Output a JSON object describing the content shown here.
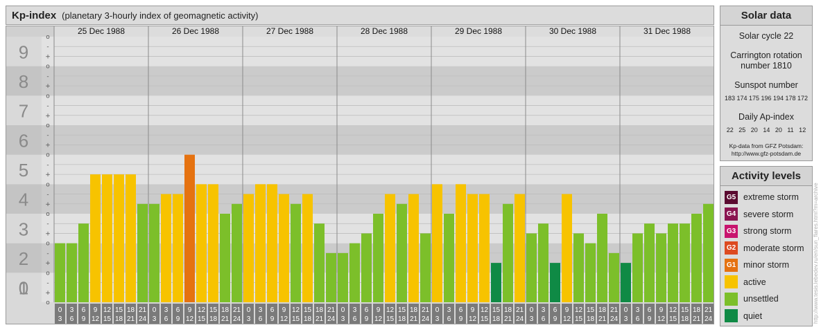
{
  "header": {
    "title": "Kp-index",
    "subtitle": "(planetary 3-hourly index of geomagnetic activity)"
  },
  "chart_data": {
    "type": "bar",
    "title": "Kp-index",
    "subtitle": "(planetary 3-hourly index of geomagnetic activity)",
    "ylim": [
      0,
      9
    ],
    "y_ticks": [
      "0",
      "1",
      "2",
      "3",
      "4",
      "5",
      "6",
      "7",
      "8",
      "9"
    ],
    "minor_tick_labels": [
      "-",
      "o",
      "+"
    ],
    "days": [
      "25 Dec 1988",
      "26 Dec 1988",
      "27 Dec 1988",
      "28 Dec 1988",
      "29 Dec 1988",
      "30 Dec 1988",
      "31 Dec 1988"
    ],
    "interval_start_labels": [
      "0",
      "3",
      "6",
      "9",
      "12",
      "15",
      "18",
      "21"
    ],
    "interval_end_labels": [
      "3",
      "6",
      "9",
      "12",
      "15",
      "18",
      "21",
      "24"
    ],
    "values": [
      [
        2.0,
        2.0,
        2.667,
        4.333,
        4.333,
        4.333,
        4.333,
        3.333
      ],
      [
        3.333,
        3.667,
        3.667,
        5.0,
        4.0,
        4.0,
        3.0,
        3.333
      ],
      [
        3.667,
        4.0,
        4.0,
        3.667,
        3.333,
        3.667,
        2.667,
        1.667
      ],
      [
        1.667,
        2.0,
        2.333,
        3.0,
        3.667,
        3.333,
        3.667,
        2.333
      ],
      [
        4.0,
        3.0,
        4.0,
        3.667,
        3.667,
        1.333,
        3.333,
        3.667
      ],
      [
        2.333,
        2.667,
        1.333,
        3.667,
        2.333,
        2.0,
        3.0,
        1.667
      ],
      [
        1.333,
        2.333,
        2.667,
        2.333,
        2.667,
        2.667,
        3.0,
        3.333
      ]
    ],
    "grid": true,
    "colors": {
      "quiet": "#0f8a45",
      "unsettled": "#7cbf2a",
      "active": "#f7c300",
      "g1": "#e57210",
      "g2": "#dd4a20",
      "g3": "#c8146e",
      "g4": "#8a1450",
      "g5": "#5a0a30"
    }
  },
  "solar_data": {
    "header": "Solar data",
    "solar_cycle": "Solar cycle 22",
    "carrington_line1": "Carrington rotation",
    "carrington_line2": "number 1810",
    "sunspot_label": "Sunspot number",
    "sunspot_values": "183 174 175 196 194 178 172",
    "ap_label": "Daily Ap-index",
    "ap_values": "22   25   20   14   20   11   12",
    "source_line1": "Kp-data from GFZ Potsdam:",
    "source_line2": "http://www.gfz-potsdam.de"
  },
  "activity_levels": {
    "header": "Activity levels",
    "items": [
      {
        "badge": "G5",
        "label": "extreme storm",
        "color": "#5a0a30"
      },
      {
        "badge": "G4",
        "label": "severe storm",
        "color": "#8a1450"
      },
      {
        "badge": "G3",
        "label": "strong storm",
        "color": "#c8146e"
      },
      {
        "badge": "G2",
        "label": "moderate storm",
        "color": "#dd4a20"
      },
      {
        "badge": "G1",
        "label": "minor storm",
        "color": "#e57210"
      },
      {
        "badge": "",
        "label": "active",
        "color": "#f7c300"
      },
      {
        "badge": "",
        "label": "unsettled",
        "color": "#7cbf2a"
      },
      {
        "badge": "",
        "label": "quiet",
        "color": "#0f8a45"
      }
    ]
  },
  "watermark": "http://www.tesis.lebedev.ru/en/sun_flares.html?m=archive"
}
